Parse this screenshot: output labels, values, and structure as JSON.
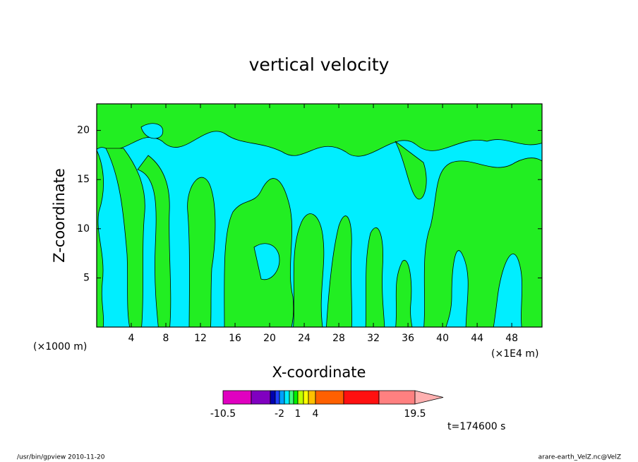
{
  "chart_data": {
    "type": "contour",
    "title": "vertical velocity",
    "x_label": "X-coordinate",
    "y_label": "Z-coordinate",
    "x_unit": "(×1E4 m)",
    "y_unit": "(×1000 m)",
    "xlim": [
      0,
      51.5
    ],
    "ylim": [
      0,
      22.7
    ],
    "xticks": [
      4,
      8,
      12,
      16,
      20,
      24,
      28,
      32,
      36,
      40,
      44,
      48
    ],
    "yticks": [
      5,
      10,
      15,
      20
    ],
    "colorbar": {
      "colors": [
        "#e000c0",
        "#8000c0",
        "#0000b0",
        "#2040ff",
        "#00a0ff",
        "#00eeff",
        "#40ff80",
        "#00ee00",
        "#c0ff00",
        "#ffff00",
        "#ffc000",
        "#ff6000",
        "#ff1010",
        "#ff8080"
      ],
      "extend_color": "#ffb0b0",
      "ticks": [
        -10.5,
        -2,
        1,
        4,
        19.5
      ]
    },
    "time_label": "t=174600 s",
    "footer_left": "/usr/bin/gpview   2010-11-20",
    "footer_right": "arare-earth_VelZ.nc@VelZ"
  }
}
